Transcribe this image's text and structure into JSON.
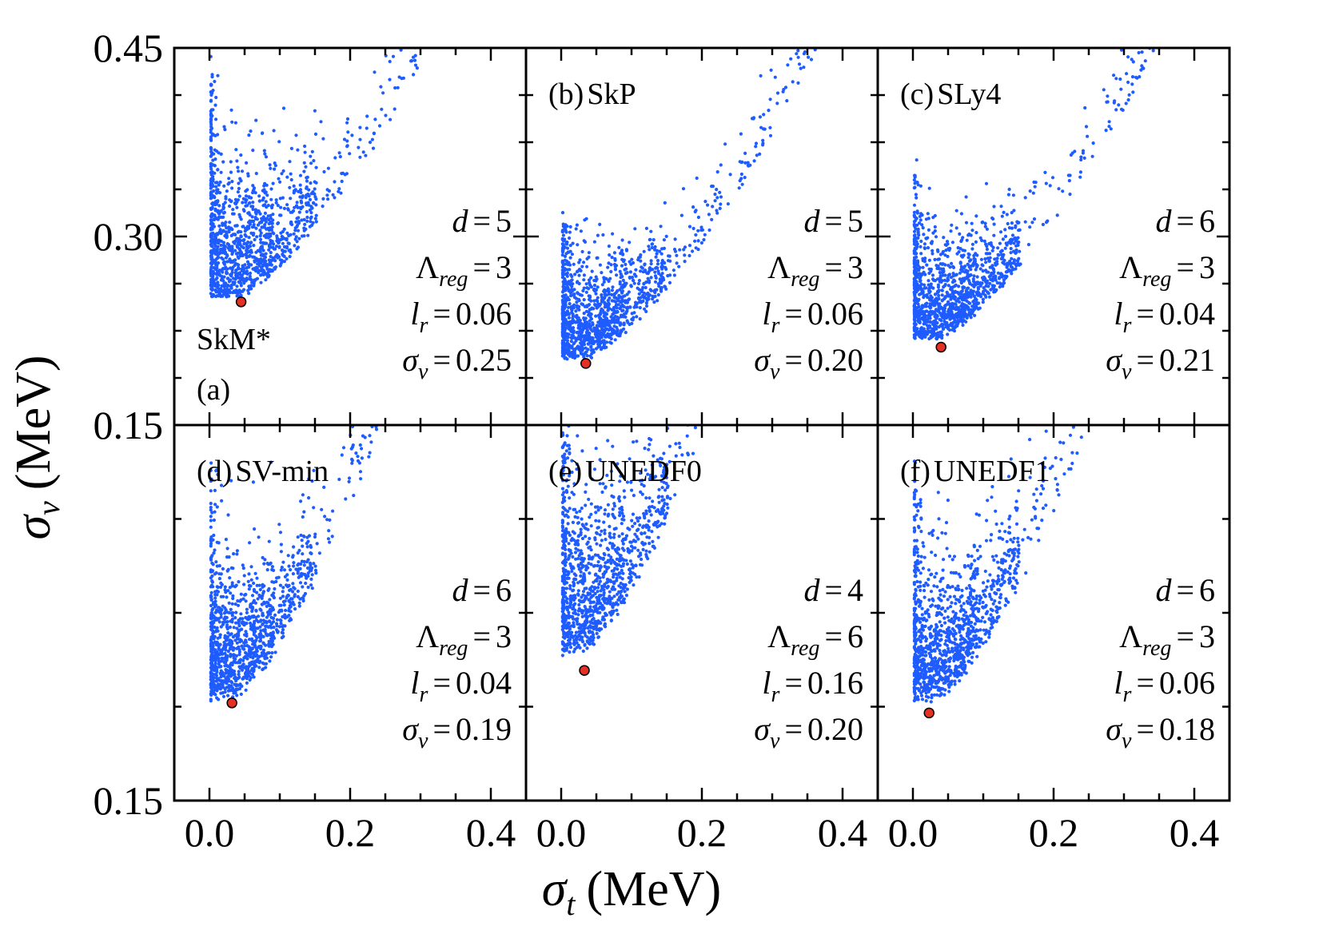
{
  "chart_data": {
    "type": "scatter",
    "layout": "2x3 grid of panels, shared axes",
    "xlabel": "σ_t (MeV)",
    "ylabel": "σ_v (MeV)",
    "xlim": [
      -0.05,
      0.45
    ],
    "x_ticks": [
      0.0,
      0.2,
      0.4
    ],
    "x_tick_labels": [
      "0.0",
      "0.2",
      "0.4"
    ],
    "y_tick_labels": [
      "0.15",
      "0.30",
      "0.45"
    ],
    "point_color": "#1f5cff",
    "optimum_marker_color": "#e53024",
    "rows": [
      {
        "ylim": [
          0.15,
          0.45
        ],
        "y_ticks": [
          0.15,
          0.3,
          0.45
        ]
      },
      {
        "ylim": [
          0.15,
          0.3
        ],
        "y_ticks": [
          0.15,
          0.3
        ]
      }
    ],
    "panels": [
      {
        "id": "a",
        "model": "SkM*",
        "tag": "(a)",
        "name": "SkM*",
        "row": 0,
        "col": 0,
        "d": "5",
        "lambda_reg": "3",
        "l_r": "0.06",
        "sigma_v": "0.25",
        "optimum": [
          0.045,
          0.248
        ],
        "curve": {
          "x0": 0.002,
          "floor": 0.26,
          "wall": 0.43,
          "scale": 0.19,
          "growth": 0.52,
          "slope": 0.96,
          "spread": 0.055
        }
      },
      {
        "id": "b",
        "model": "SkP",
        "tag": "(b)",
        "name": "SkP",
        "row": 0,
        "col": 1,
        "d": "5",
        "lambda_reg": "3",
        "l_r": "0.06",
        "sigma_v": "0.20",
        "optimum": [
          0.035,
          0.199
        ],
        "curve": {
          "x0": 0.002,
          "floor": 0.21,
          "wall": 0.31,
          "scale": 0.12,
          "growth": 0.4,
          "slope": 0.92,
          "spread": 0.04
        }
      },
      {
        "id": "c",
        "model": "SLy4",
        "tag": "(c)",
        "name": "SLy4",
        "row": 0,
        "col": 2,
        "d": "6",
        "lambda_reg": "3",
        "l_r": "0.04",
        "sigma_v": "0.21",
        "optimum": [
          0.04,
          0.212
        ],
        "curve": {
          "x0": 0.002,
          "floor": 0.225,
          "wall": 0.35,
          "scale": 0.12,
          "growth": 0.38,
          "slope": 0.95,
          "spread": 0.04
        }
      },
      {
        "id": "d",
        "model": "SV-min",
        "tag": "(d)",
        "name": "SV-min",
        "row": 1,
        "col": 0,
        "d": "6",
        "lambda_reg": "3",
        "l_r": "0.04",
        "sigma_v": "0.19",
        "optimum": [
          0.032,
          0.189
        ],
        "curve": {
          "x0": 0.002,
          "floor": 0.195,
          "wall": 0.285,
          "scale": 0.11,
          "growth": 0.55,
          "slope": 0.78,
          "spread": 0.025
        }
      },
      {
        "id": "e",
        "model": "UNEDF0",
        "tag": "(e)",
        "name": "UNEDF0",
        "row": 1,
        "col": 1,
        "d": "4",
        "lambda_reg": "6",
        "l_r": "0.16",
        "sigma_v": "0.20",
        "optimum": [
          0.033,
          0.202
        ],
        "curve": {
          "x0": 0.002,
          "floor": 0.215,
          "wall": 0.32,
          "scale": 0.12,
          "growth": 0.55,
          "slope": 0.88,
          "spread": 0.03
        }
      },
      {
        "id": "f",
        "model": "UNEDF1",
        "tag": "(f)",
        "name": "UNEDF1",
        "row": 1,
        "col": 2,
        "d": "6",
        "lambda_reg": "3",
        "l_r": "0.06",
        "sigma_v": "0.18",
        "optimum": [
          0.023,
          0.185
        ],
        "curve": {
          "x0": 0.002,
          "floor": 0.195,
          "wall": 0.28,
          "scale": 0.11,
          "growth": 0.55,
          "slope": 0.76,
          "spread": 0.028
        }
      }
    ]
  },
  "labels": {
    "d_symbol": "d",
    "lambda_symbol": "Λ",
    "lambda_sub": "reg",
    "lr_symbol": "l",
    "lr_sub": "r",
    "sigma_symbol": "σ",
    "sigma_sub": "v",
    "equals": "=",
    "x_title_symbol": "σ",
    "x_title_sub": "t",
    "x_title_unit": "(MeV)",
    "y_title_symbol": "σ",
    "y_title_sub": "v",
    "y_title_unit": "(MeV)"
  }
}
